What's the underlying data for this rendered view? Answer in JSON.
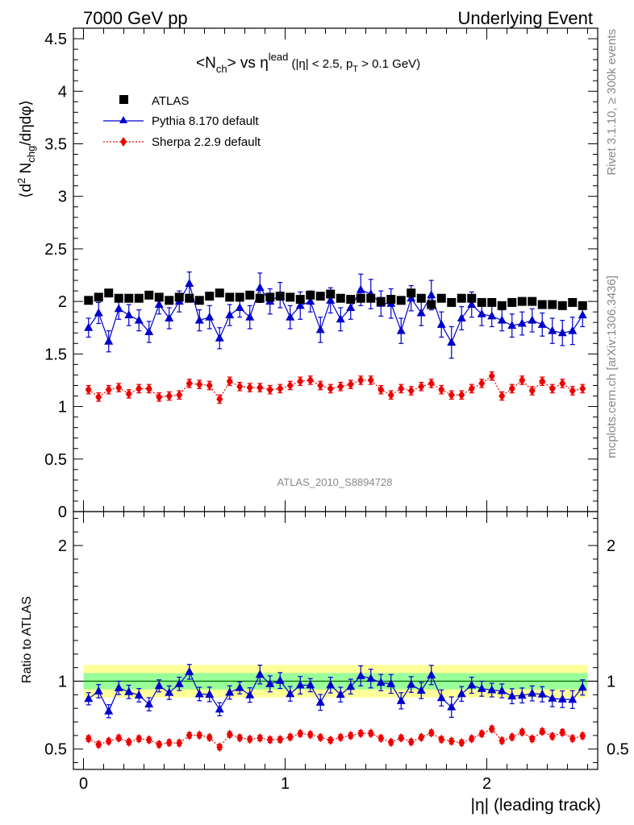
{
  "header": {
    "left": "7000 GeV pp",
    "right": "Underlying Event"
  },
  "side_text": {
    "rivet": "Rivet 3.1.10, ≥ 300k events",
    "mcplots": "mcplots.cern.ch [arXiv:1306.3436]"
  },
  "analysis_id": "ATLAS_2010_S8894728",
  "chart_data": {
    "type": "scatter",
    "title": "<N_ch> vs η^lead (|η| < 2.5, p_T > 0.1 GeV)",
    "xlabel": "|η| (leading track)",
    "ylabel": "⟨d² N_chg/dηdφ⟩",
    "ratio_ylabel": "Ratio to ATLAS",
    "xlim": [
      -0.05,
      2.55
    ],
    "ylim": [
      0,
      4.6
    ],
    "ratio_ylim": [
      0.35,
      2.25
    ],
    "x_ticks": [
      0,
      1,
      2
    ],
    "y_ticks": [
      0,
      0.5,
      1,
      1.5,
      2,
      2.5,
      3,
      3.5,
      4,
      4.5
    ],
    "ratio_ticks": [
      0.5,
      1,
      2
    ],
    "grid": false,
    "legend_position": "top-left",
    "colors": {
      "atlas": "#000000",
      "pythia": "#0000cc",
      "sherpa": "#ee0000",
      "band_inner": "#99ff99",
      "band_outer": "#ffff99",
      "ratio_line": "#006600"
    },
    "x": [
      0.025,
      0.075,
      0.125,
      0.175,
      0.225,
      0.275,
      0.325,
      0.375,
      0.425,
      0.475,
      0.525,
      0.575,
      0.625,
      0.675,
      0.725,
      0.775,
      0.825,
      0.875,
      0.925,
      0.975,
      1.025,
      1.075,
      1.125,
      1.175,
      1.225,
      1.275,
      1.325,
      1.375,
      1.425,
      1.475,
      1.525,
      1.575,
      1.625,
      1.675,
      1.725,
      1.775,
      1.825,
      1.875,
      1.925,
      1.975,
      2.025,
      2.075,
      2.125,
      2.175,
      2.225,
      2.275,
      2.325,
      2.375,
      2.425,
      2.475
    ],
    "series": [
      {
        "name": "ATLAS",
        "values": [
          2.01,
          2.04,
          2.08,
          2.03,
          2.03,
          2.03,
          2.06,
          2.04,
          2.01,
          2.04,
          2.03,
          2.01,
          2.05,
          2.08,
          2.04,
          2.04,
          2.06,
          2.03,
          2.04,
          2.05,
          2.04,
          2.02,
          2.06,
          2.05,
          2.07,
          2.03,
          2.02,
          2.03,
          2.03,
          2.0,
          2.02,
          2.01,
          2.08,
          2.03,
          1.97,
          2.03,
          1.99,
          2.03,
          2.03,
          1.99,
          1.99,
          1.96,
          1.99,
          2.0,
          2.0,
          1.97,
          1.97,
          1.96,
          1.99,
          1.96
        ]
      },
      {
        "name": "Pythia 8.170 default",
        "values": [
          1.75,
          1.89,
          1.62,
          1.93,
          1.87,
          1.82,
          1.71,
          1.97,
          1.84,
          2.0,
          2.17,
          1.82,
          1.85,
          1.65,
          1.87,
          1.94,
          1.85,
          2.13,
          2.0,
          2.06,
          1.85,
          1.96,
          2.0,
          1.73,
          2.01,
          1.83,
          1.94,
          2.11,
          2.07,
          1.98,
          1.98,
          1.72,
          2.03,
          1.89,
          2.06,
          1.78,
          1.61,
          1.84,
          1.97,
          1.88,
          1.86,
          1.82,
          1.77,
          1.79,
          1.82,
          1.78,
          1.72,
          1.7,
          1.72,
          1.87
        ],
        "errors": [
          0.09,
          0.1,
          0.1,
          0.1,
          0.1,
          0.1,
          0.1,
          0.09,
          0.1,
          0.1,
          0.11,
          0.1,
          0.11,
          0.1,
          0.1,
          0.09,
          0.11,
          0.14,
          0.12,
          0.12,
          0.11,
          0.13,
          0.1,
          0.12,
          0.12,
          0.11,
          0.11,
          0.15,
          0.14,
          0.12,
          0.14,
          0.12,
          0.12,
          0.12,
          0.14,
          0.12,
          0.15,
          0.11,
          0.12,
          0.11,
          0.1,
          0.1,
          0.11,
          0.11,
          0.11,
          0.11,
          0.12,
          0.12,
          0.13,
          0.11
        ]
      },
      {
        "name": "Sherpa 2.2.9 default",
        "values": [
          1.16,
          1.09,
          1.16,
          1.18,
          1.12,
          1.17,
          1.17,
          1.09,
          1.1,
          1.11,
          1.22,
          1.21,
          1.2,
          1.07,
          1.24,
          1.19,
          1.18,
          1.18,
          1.16,
          1.17,
          1.2,
          1.24,
          1.25,
          1.2,
          1.17,
          1.19,
          1.21,
          1.25,
          1.25,
          1.16,
          1.11,
          1.17,
          1.15,
          1.19,
          1.22,
          1.16,
          1.11,
          1.11,
          1.17,
          1.22,
          1.29,
          1.1,
          1.17,
          1.25,
          1.15,
          1.24,
          1.17,
          1.22,
          1.15,
          1.17
        ],
        "errors": [
          0.04,
          0.04,
          0.04,
          0.04,
          0.04,
          0.04,
          0.04,
          0.04,
          0.04,
          0.04,
          0.04,
          0.04,
          0.04,
          0.04,
          0.04,
          0.04,
          0.04,
          0.04,
          0.04,
          0.04,
          0.04,
          0.04,
          0.04,
          0.04,
          0.04,
          0.04,
          0.04,
          0.04,
          0.04,
          0.04,
          0.04,
          0.04,
          0.04,
          0.04,
          0.04,
          0.04,
          0.04,
          0.04,
          0.04,
          0.04,
          0.04,
          0.04,
          0.04,
          0.04,
          0.04,
          0.04,
          0.04,
          0.04,
          0.04,
          0.04
        ]
      }
    ],
    "ratio_band_inner": 0.06,
    "ratio_band_outer": 0.12
  }
}
